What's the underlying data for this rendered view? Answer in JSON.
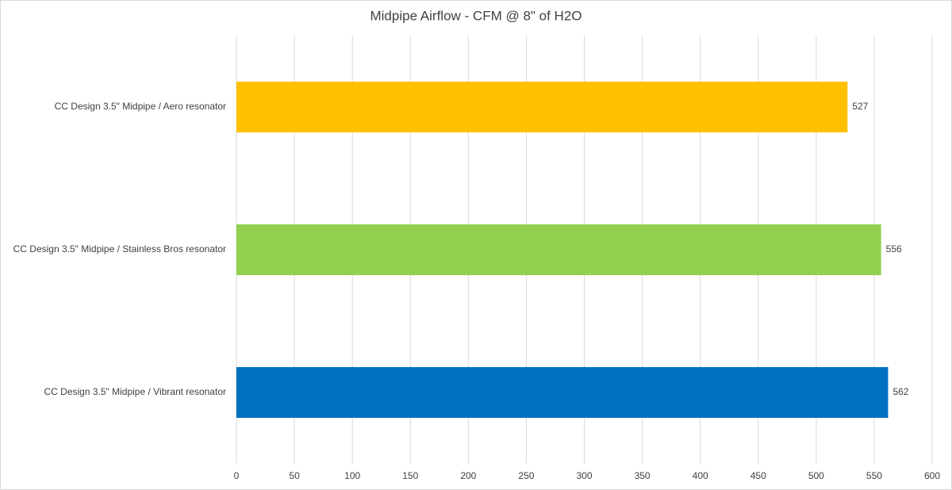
{
  "chart_data": {
    "type": "bar",
    "orientation": "horizontal",
    "title": "Midpipe Airflow - CFM @ 8\" of H2O",
    "categories": [
      "CC Design 3.5\" Midpipe / Aero resonator",
      "CC Design 3.5\" Midpipe / Stainless Bros resonator",
      "CC Design 3.5\" Midpipe / Vibrant resonator"
    ],
    "values": [
      527,
      556,
      562
    ],
    "colors": [
      "#ffc000",
      "#92d050",
      "#0070c0"
    ],
    "xlim": [
      0,
      600
    ],
    "xticks": [
      0,
      50,
      100,
      150,
      200,
      250,
      300,
      350,
      400,
      450,
      500,
      550,
      600
    ],
    "grid": true
  }
}
